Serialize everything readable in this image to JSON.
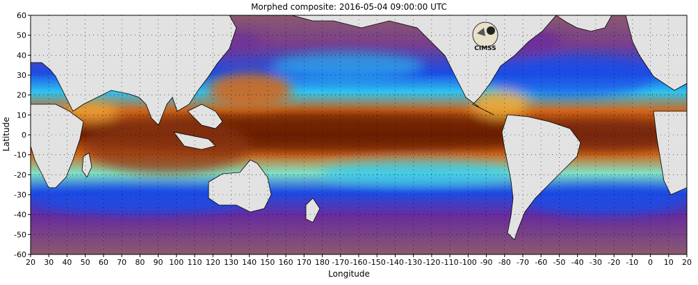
{
  "title": "Morphed composite: 2016-05-04 09:00:00 UTC",
  "xlabel": "Longitude",
  "ylabel": "Latitude",
  "map": {
    "type": "precipitable-water composite map",
    "projection": "equirectangular",
    "center_longitude": 200,
    "lon_range": [
      20,
      380
    ],
    "lat_range": [
      -60,
      60
    ],
    "x_tick_labels": [
      "20",
      "30",
      "40",
      "50",
      "60",
      "70",
      "80",
      "90",
      "100",
      "110",
      "120",
      "130",
      "140",
      "150",
      "160",
      "170",
      "180",
      "-170",
      "-160",
      "-150",
      "-140",
      "-130",
      "-120",
      "-110",
      "-100",
      "-90",
      "-80",
      "-70",
      "-60",
      "-50",
      "-40",
      "-30",
      "-20",
      "-10",
      "0",
      "10",
      "20"
    ],
    "y_tick_labels": [
      "60",
      "50",
      "40",
      "30",
      "20",
      "10",
      "0",
      "-10",
      "-20",
      "-30",
      "-40",
      "-50",
      "-60"
    ],
    "grid": "dotted",
    "colors": {
      "very_moist": "#6b1e06",
      "moist": "#d2681c",
      "moderate": "#f2b03c",
      "mid": "#7fe1c4",
      "lower": "#2ec3f0",
      "low": "#1c4ce6",
      "dry": "#6a2c9c",
      "very_dry": "#8a5a6e",
      "land": "#e2e2e2"
    },
    "logo": "CIMSS",
    "logo_icon": "cimss-logo-icon"
  }
}
